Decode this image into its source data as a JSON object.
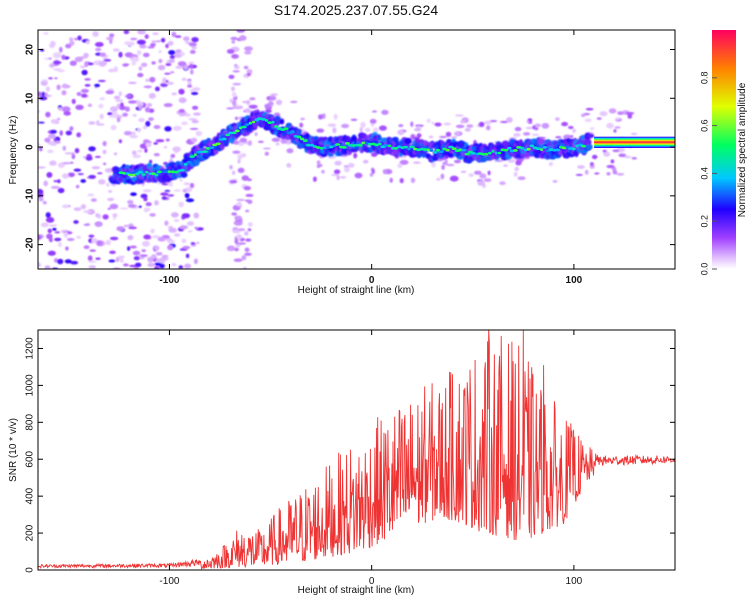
{
  "title": "S174.2025.237.07.55.G24",
  "chart_data": [
    {
      "type": "heatmap",
      "name": "spectrogram",
      "xlabel": "Height of straight line (km)",
      "ylabel": "Frequency (Hz)",
      "xlim": [
        -165,
        150
      ],
      "ylim": [
        -25,
        24
      ],
      "xticks": [
        -100,
        0,
        100
      ],
      "yticks": [
        -20,
        -10,
        0,
        10,
        20
      ],
      "colorbar": {
        "label": "Normalized spectral amplitude",
        "range": [
          0,
          1
        ],
        "ticks": [
          "0.0",
          "0.2",
          "0.4",
          "0.6",
          "0.8"
        ],
        "tick_values": [
          0.0,
          0.2,
          0.4,
          0.6,
          0.8
        ],
        "colors": [
          "#ffffff",
          "#e6c8ff",
          "#a040ff",
          "#2000ff",
          "#00c8ff",
          "#00ff60",
          "#e0ff00",
          "#ff8000",
          "#ff0060"
        ]
      },
      "ridge": {
        "x": [
          -125,
          -110,
          -95,
          -88,
          -80,
          -72,
          -65,
          -60,
          -55,
          -50,
          -45,
          -40,
          -35,
          -30,
          -25,
          -20,
          -10,
          0,
          10,
          20,
          30,
          40,
          50,
          60,
          70,
          80,
          90,
          100,
          110,
          150
        ],
        "freq": [
          -5.5,
          -5.5,
          -5,
          -2,
          0,
          2,
          4,
          5,
          6,
          5,
          4,
          3,
          1.5,
          0.5,
          0,
          0,
          0.5,
          1,
          0,
          0,
          -1,
          0,
          -1.5,
          -1,
          -0.5,
          0,
          -0.5,
          0,
          1,
          1
        ]
      },
      "constant_band": {
        "x_start": 110,
        "x_end": 150,
        "freq": 1
      }
    },
    {
      "type": "line",
      "name": "snr",
      "xlabel": "Height of straight line (km)",
      "ylabel": "SNR (10 * v/v)",
      "xlim": [
        -165,
        150
      ],
      "ylim": [
        0,
        1300
      ],
      "xticks": [
        -100,
        0,
        100
      ],
      "yticks": [
        0,
        200,
        400,
        600,
        800,
        1000,
        1200
      ],
      "color": "#ef3232",
      "envelope": {
        "x": [
          -165,
          -100,
          -85,
          -75,
          -65,
          -55,
          -45,
          -35,
          -25,
          -15,
          -5,
          5,
          15,
          25,
          35,
          45,
          55,
          65,
          75,
          85,
          95,
          105,
          112,
          150
        ],
        "low": [
          5,
          5,
          5,
          10,
          15,
          20,
          30,
          40,
          60,
          80,
          100,
          150,
          200,
          250,
          280,
          250,
          200,
          180,
          150,
          200,
          250,
          450,
          540,
          560
        ],
        "high": [
          30,
          35,
          60,
          120,
          250,
          220,
          350,
          450,
          550,
          650,
          750,
          850,
          920,
          1000,
          1050,
          1150,
          1250,
          1300,
          1200,
          1000,
          850,
          700,
          620,
          620
        ]
      },
      "peaks": [
        {
          "x": 20,
          "y": 840
        },
        {
          "x": 40,
          "y": 1060
        },
        {
          "x": 58,
          "y": 1300
        },
        {
          "x": 75,
          "y": 1300
        },
        {
          "x": 85,
          "y": 1110
        },
        {
          "x": 100,
          "y": 760
        }
      ]
    }
  ]
}
